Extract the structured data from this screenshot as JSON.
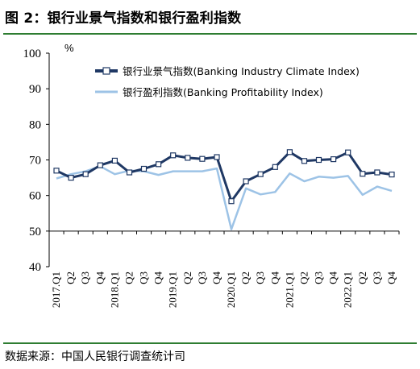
{
  "figure": {
    "title": "图 2：银行业景气指数和银行盈利指数",
    "source": "数据来源：中国人民银行调查统计司"
  },
  "colors": {
    "accent_rule": "#2e7d32",
    "series_dark": "#1f3864",
    "series_light": "#9dc3e6"
  },
  "chart_data": {
    "type": "line",
    "ylabel": "%",
    "ylim": [
      40,
      100
    ],
    "yticks": [
      40,
      50,
      60,
      70,
      80,
      90,
      100
    ],
    "x": [
      "2017.Q1",
      "Q2",
      "Q3",
      "Q4",
      "2018.Q1",
      "Q2",
      "Q3",
      "Q4",
      "2019.Q1",
      "Q2",
      "Q3",
      "Q4",
      "2020.Q1",
      "Q2",
      "Q3",
      "Q4",
      "2021.Q1",
      "Q2",
      "Q3",
      "Q4",
      "2022.Q1",
      "Q2",
      "Q3",
      "Q4"
    ],
    "legend_position": "top",
    "grid": false,
    "series": [
      {
        "name": "银行业景气指数(Banking Industry Climate Index)",
        "color": "#1f3864",
        "marker": "square",
        "values": [
          67.0,
          65.0,
          66.0,
          68.5,
          69.8,
          66.5,
          67.5,
          68.8,
          71.3,
          70.6,
          70.3,
          70.8,
          58.4,
          64.0,
          66.0,
          68.0,
          72.2,
          69.7,
          70.0,
          70.2,
          72.1,
          66.1,
          66.5,
          65.9
        ]
      },
      {
        "name": "银行盈利指数(Banking Profitability Index)",
        "color": "#9dc3e6",
        "marker": "none",
        "values": [
          64.8,
          66.0,
          66.8,
          68.2,
          66.0,
          67.0,
          66.8,
          65.8,
          66.8,
          66.8,
          66.8,
          67.6,
          50.5,
          62.0,
          60.3,
          61.0,
          66.2,
          64.0,
          65.3,
          65.0,
          65.5,
          60.2,
          62.5,
          61.3
        ]
      }
    ]
  }
}
